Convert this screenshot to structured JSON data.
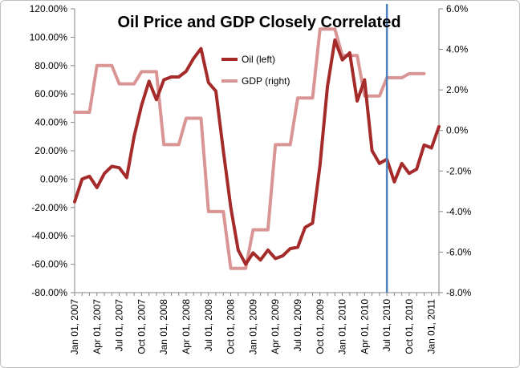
{
  "chart_data": {
    "type": "line",
    "title": "Oil Price and GDP Closely Correlated",
    "x_tick_labels": [
      "Jan 01, 2007",
      "Apr 01, 2007",
      "Jul 01, 2007",
      "Oct 01, 2007",
      "Jan 01, 2008",
      "Apr 01, 2008",
      "Jul 01, 2008",
      "Oct 01, 2008",
      "Jan 01, 2009",
      "Apr 01, 2009",
      "Jul 01, 2009",
      "Oct 01, 2009",
      "Jan 01, 2010",
      "Apr 01, 2010",
      "Jul 01, 2010",
      "Oct 01, 2010",
      "Jan 01, 2011"
    ],
    "y_left_tick_labels": [
      "120.00%",
      "100.00%",
      "80.00%",
      "60.00%",
      "40.00%",
      "20.00%",
      "0.00%",
      "-20.00%",
      "-40.00%",
      "-60.00%",
      "-80.00%"
    ],
    "y_right_tick_labels": [
      "6.0%",
      "4.0%",
      "2.0%",
      "0.0%",
      "-2.0%",
      "-4.0%",
      "-6.0%",
      "-8.0%"
    ],
    "y_left_range": [
      -80,
      120
    ],
    "y_right_range": [
      -8,
      6
    ],
    "x_range": [
      "Jan 01, 2007",
      "Feb 01, 2011"
    ],
    "legend_placement": "center",
    "grid": false,
    "vertical_marker_month": "Jul 01, 2010",
    "series": [
      {
        "name": "Oil (left)",
        "axis": "left",
        "color": "#a52a2a",
        "points": [
          [
            "2007-01",
            -16
          ],
          [
            "2007-02",
            0
          ],
          [
            "2007-03",
            2
          ],
          [
            "2007-04",
            -6
          ],
          [
            "2007-05",
            4
          ],
          [
            "2007-06",
            9
          ],
          [
            "2007-07",
            8
          ],
          [
            "2007-08",
            1
          ],
          [
            "2007-09",
            30
          ],
          [
            "2007-10",
            52
          ],
          [
            "2007-11",
            69
          ],
          [
            "2007-12",
            56
          ],
          [
            "2008-01",
            70
          ],
          [
            "2008-02",
            72
          ],
          [
            "2008-03",
            72
          ],
          [
            "2008-04",
            76
          ],
          [
            "2008-05",
            85
          ],
          [
            "2008-06",
            92
          ],
          [
            "2008-07",
            68
          ],
          [
            "2008-08",
            62
          ],
          [
            "2008-09",
            20
          ],
          [
            "2008-10",
            -20
          ],
          [
            "2008-11",
            -50
          ],
          [
            "2008-12",
            -60
          ],
          [
            "2009-01",
            -52
          ],
          [
            "2009-02",
            -57
          ],
          [
            "2009-03",
            -50
          ],
          [
            "2009-04",
            -56
          ],
          [
            "2009-05",
            -54
          ],
          [
            "2009-06",
            -49
          ],
          [
            "2009-07",
            -48
          ],
          [
            "2009-08",
            -34
          ],
          [
            "2009-09",
            -31
          ],
          [
            "2009-10",
            10
          ],
          [
            "2009-11",
            65
          ],
          [
            "2009-12",
            98
          ],
          [
            "2010-01",
            84
          ],
          [
            "2010-02",
            89
          ],
          [
            "2010-03",
            55
          ],
          [
            "2010-04",
            70
          ],
          [
            "2010-05",
            20
          ],
          [
            "2010-06",
            11
          ],
          [
            "2010-07",
            14
          ],
          [
            "2010-08",
            -2
          ],
          [
            "2010-09",
            11
          ],
          [
            "2010-10",
            4
          ],
          [
            "2010-11",
            7
          ],
          [
            "2010-12",
            24
          ],
          [
            "2011-01",
            22
          ],
          [
            "2011-02",
            37
          ]
        ]
      },
      {
        "name": "GDP (right)",
        "axis": "right",
        "color": "#d99594",
        "points": [
          [
            "2007-01",
            0.9
          ],
          [
            "2007-03",
            0.9
          ],
          [
            "2007-04",
            3.2
          ],
          [
            "2007-06",
            3.2
          ],
          [
            "2007-07",
            2.3
          ],
          [
            "2007-09",
            2.3
          ],
          [
            "2007-10",
            2.9
          ],
          [
            "2007-12",
            2.9
          ],
          [
            "2008-01",
            -0.7
          ],
          [
            "2008-03",
            -0.7
          ],
          [
            "2008-04",
            0.6
          ],
          [
            "2008-06",
            0.6
          ],
          [
            "2008-07",
            -4.0
          ],
          [
            "2008-09",
            -4.0
          ],
          [
            "2008-10",
            -6.8
          ],
          [
            "2008-12",
            -6.8
          ],
          [
            "2009-01",
            -4.9
          ],
          [
            "2009-03",
            -4.9
          ],
          [
            "2009-04",
            -0.7
          ],
          [
            "2009-06",
            -0.7
          ],
          [
            "2009-07",
            1.6
          ],
          [
            "2009-09",
            1.6
          ],
          [
            "2009-10",
            5.0
          ],
          [
            "2009-12",
            5.0
          ],
          [
            "2010-01",
            3.7
          ],
          [
            "2010-03",
            3.7
          ],
          [
            "2010-04",
            1.7
          ],
          [
            "2010-06",
            1.7
          ],
          [
            "2010-07",
            2.6
          ],
          [
            "2010-09",
            2.6
          ],
          [
            "2010-10",
            2.8
          ],
          [
            "2010-12",
            2.8
          ]
        ]
      }
    ]
  },
  "colors": {
    "marker_line": "#4f81bd",
    "axis": "#868686"
  }
}
